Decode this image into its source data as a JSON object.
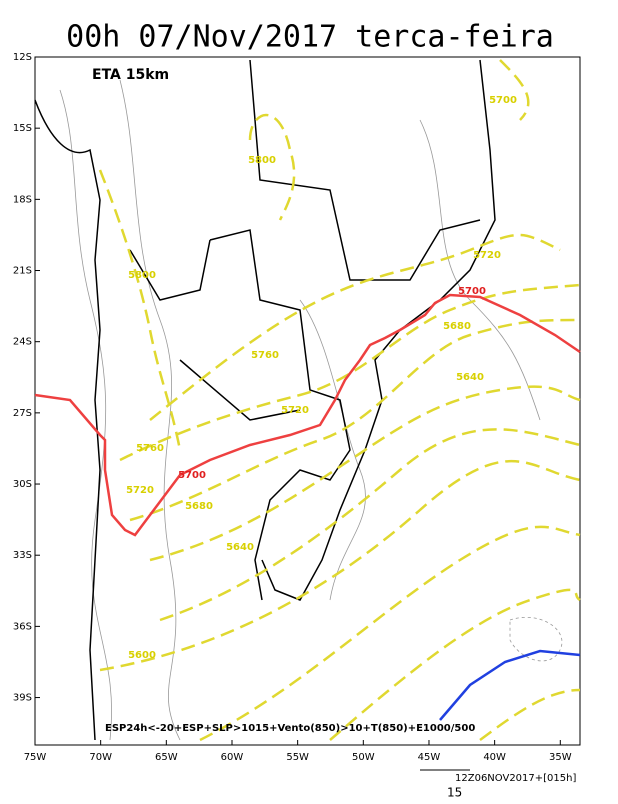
{
  "title": "00h 07/Nov/2017 terca-feira",
  "model": "ETA 15km",
  "lat_range": [
    -12,
    -41
  ],
  "lon_range": [
    -75,
    -33.5
  ],
  "lat_ticks": [
    {
      "value": -12,
      "label": "12S"
    },
    {
      "value": -15,
      "label": "15S"
    },
    {
      "value": -18,
      "label": "18S"
    },
    {
      "value": -21,
      "label": "21S"
    },
    {
      "value": -24,
      "label": "24S"
    },
    {
      "value": -27,
      "label": "27S"
    },
    {
      "value": -30,
      "label": "30S"
    },
    {
      "value": -33,
      "label": "33S"
    },
    {
      "value": -36,
      "label": "36S"
    },
    {
      "value": -39,
      "label": "39S"
    }
  ],
  "lon_ticks": [
    {
      "value": -75,
      "label": "75W"
    },
    {
      "value": -70,
      "label": "70W"
    },
    {
      "value": -65,
      "label": "65W"
    },
    {
      "value": -60,
      "label": "60W"
    },
    {
      "value": -55,
      "label": "55W"
    },
    {
      "value": -50,
      "label": "50W"
    },
    {
      "value": -45,
      "label": "45W"
    },
    {
      "value": -40,
      "label": "40W"
    },
    {
      "value": -35,
      "label": "35W"
    }
  ],
  "contour_labels": [
    5700,
    5800,
    5800,
    5760,
    5720,
    5700,
    5680,
    5640,
    5720,
    5760,
    5700,
    5720,
    5680,
    5640,
    5600
  ],
  "caption": "ESP24h<-20+ESP+SLP>1015+Vento(850)>10+T(850)+E1000/500",
  "run": "12Z06NOV2017+[015h]",
  "vector_scale": "15"
}
